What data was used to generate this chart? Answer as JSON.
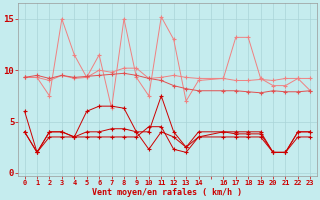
{
  "background_color": "#c5ecee",
  "grid_color": "#aad4d8",
  "xlabel": "Vent moyen/en rafales ( km/h )",
  "ylim": [
    -0.3,
    16.5
  ],
  "yticks": [
    0,
    5,
    10,
    15
  ],
  "xlim": [
    -0.5,
    23.5
  ],
  "color_light": "#f08080",
  "color_medium": "#e05050",
  "color_dark": "#cc0000",
  "x_values": [
    0,
    1,
    2,
    3,
    4,
    5,
    6,
    7,
    8,
    9,
    10,
    11,
    12,
    13,
    14,
    16,
    17,
    18,
    19,
    20,
    21,
    22,
    23
  ],
  "line_gust_max": [
    9.3,
    9.3,
    7.5,
    15.0,
    11.5,
    9.3,
    11.5,
    6.3,
    15.0,
    9.3,
    7.5,
    15.2,
    13.0,
    7.0,
    9.0,
    9.2,
    13.2,
    13.2,
    9.2,
    8.5,
    8.5,
    9.2,
    8.0
  ],
  "line_gust_avg": [
    9.3,
    9.3,
    9.0,
    9.5,
    9.2,
    9.3,
    10.0,
    9.8,
    10.2,
    10.2,
    9.2,
    9.3,
    9.5,
    9.3,
    9.2,
    9.2,
    9.0,
    9.0,
    9.1,
    9.0,
    9.2,
    9.2,
    9.2
  ],
  "line_mean_trend": [
    9.3,
    9.5,
    9.2,
    9.5,
    9.3,
    9.4,
    9.5,
    9.6,
    9.7,
    9.5,
    9.2,
    9.0,
    8.5,
    8.2,
    8.0,
    8.0,
    8.0,
    7.9,
    7.8,
    8.0,
    7.9,
    7.9,
    8.0
  ],
  "line_wind_max": [
    6.0,
    2.0,
    4.0,
    4.0,
    3.5,
    6.0,
    6.5,
    6.5,
    6.3,
    4.0,
    4.0,
    7.5,
    4.0,
    2.5,
    4.0,
    4.0,
    4.0,
    4.0,
    4.0,
    2.0,
    2.0,
    4.0,
    4.0
  ],
  "line_wind_avg": [
    4.0,
    2.0,
    4.0,
    4.0,
    3.5,
    4.0,
    4.0,
    4.3,
    4.3,
    4.0,
    2.3,
    4.0,
    3.5,
    2.5,
    3.5,
    4.0,
    3.8,
    3.8,
    3.8,
    2.0,
    2.0,
    4.0,
    4.0
  ],
  "line_wind_min": [
    4.0,
    2.0,
    3.5,
    3.5,
    3.5,
    3.5,
    3.5,
    3.5,
    3.5,
    3.5,
    4.5,
    4.5,
    2.3,
    2.0,
    3.5,
    3.5,
    3.5,
    3.5,
    3.5,
    2.0,
    2.0,
    3.5,
    3.5
  ]
}
